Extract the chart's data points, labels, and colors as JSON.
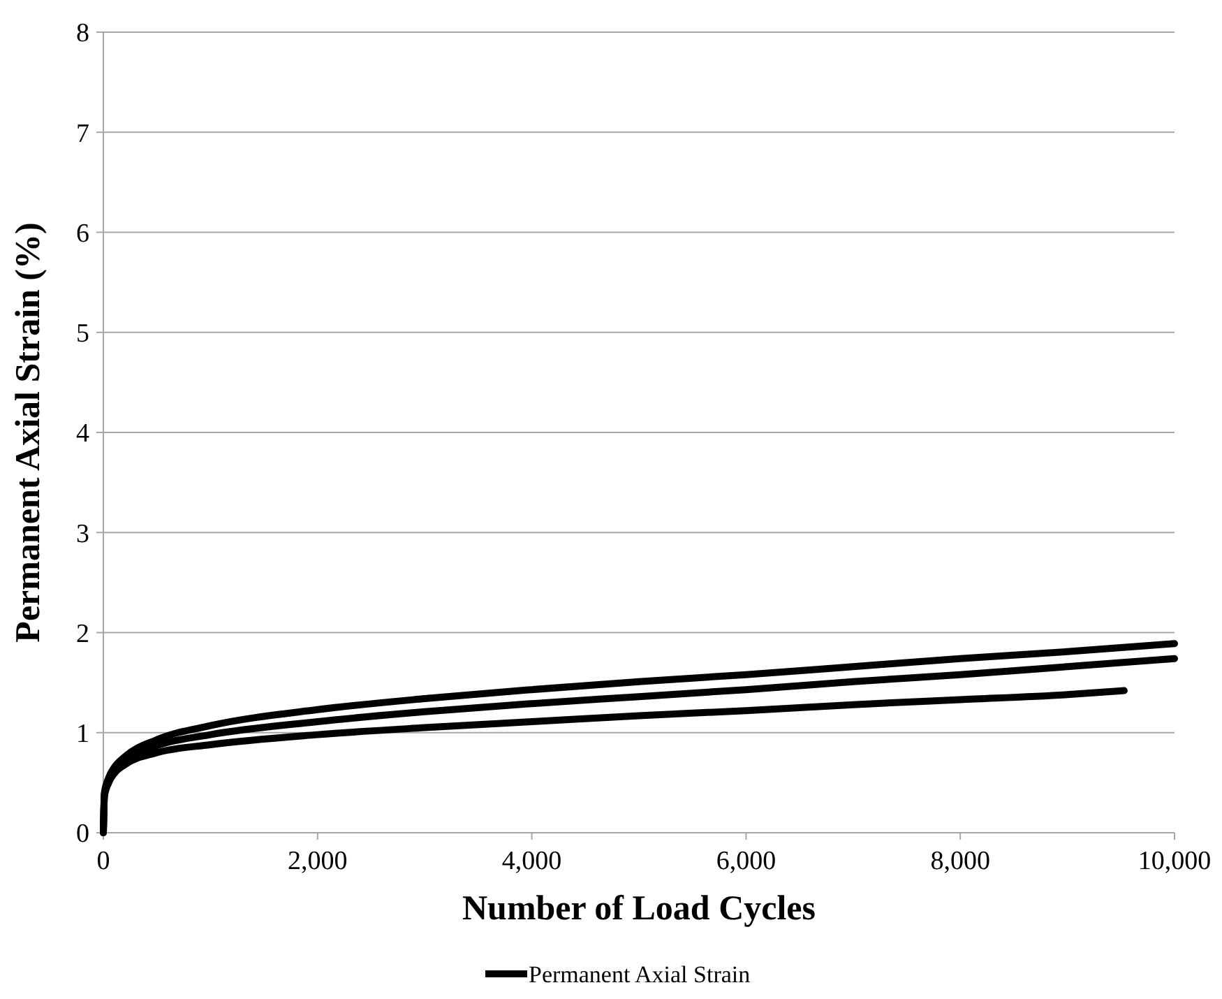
{
  "chart_data": {
    "type": "line",
    "xlabel": "Number of Load Cycles",
    "ylabel": "Permanent Axial Strain (%)",
    "xlim": [
      0,
      10000
    ],
    "xticks": [
      0,
      {
        "value": 2000,
        "label": "2,000"
      },
      {
        "value": 4000,
        "label": "4,000"
      },
      {
        "value": 6000,
        "label": "6,000"
      },
      {
        "value": 8000,
        "label": "8,000"
      },
      {
        "value": 10000,
        "label": "10,000"
      }
    ],
    "ylim": [
      0,
      8
    ],
    "yticks": [
      0,
      1,
      2,
      3,
      4,
      5,
      6,
      7,
      8
    ],
    "grid": "y",
    "legend": "bottom",
    "marker": "none",
    "line_style": "solid",
    "series": [
      {
        "name": "Permanent Axial Strain",
        "color": "#000000",
        "x": [
          0,
          10,
          50,
          100,
          200,
          500,
          1000,
          2000,
          3000,
          4000,
          5000,
          6000,
          7000,
          8000,
          9000,
          10000
        ],
        "values": [
          0,
          0.4,
          0.55,
          0.65,
          0.76,
          0.93,
          1.07,
          1.23,
          1.34,
          1.43,
          1.51,
          1.58,
          1.66,
          1.74,
          1.81,
          1.89
        ]
      },
      {
        "color": "#000000",
        "x": [
          0,
          10,
          50,
          100,
          200,
          500,
          1000,
          2000,
          3000,
          4000,
          5000,
          6000,
          7000,
          8000,
          9000,
          10000
        ],
        "values": [
          0,
          0.38,
          0.52,
          0.62,
          0.72,
          0.87,
          0.98,
          1.11,
          1.21,
          1.29,
          1.36,
          1.43,
          1.51,
          1.58,
          1.66,
          1.74
        ]
      },
      {
        "color": "#000000",
        "x": [
          0,
          10,
          50,
          100,
          200,
          500,
          1000,
          2000,
          3000,
          4000,
          5000,
          6000,
          7000,
          8000,
          9000,
          9530
        ],
        "values": [
          0,
          0.36,
          0.5,
          0.59,
          0.68,
          0.8,
          0.88,
          0.98,
          1.05,
          1.11,
          1.17,
          1.22,
          1.28,
          1.33,
          1.38,
          1.42
        ]
      }
    ]
  }
}
